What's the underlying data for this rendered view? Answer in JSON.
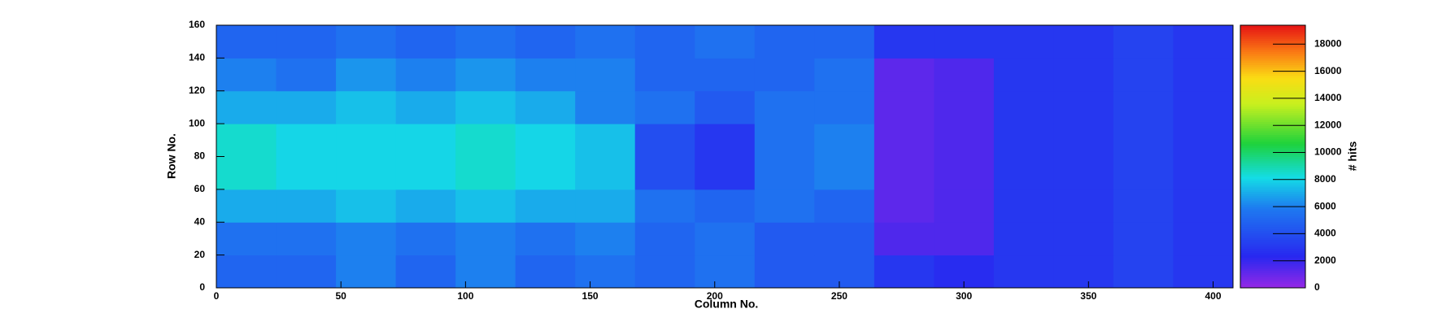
{
  "chart_data": {
    "type": "heatmap",
    "x_label": "Column No.",
    "y_label": "Row No.",
    "z_label": "# hits",
    "x_bins": [
      0,
      24,
      48,
      72,
      96,
      120,
      144,
      168,
      192,
      216,
      240,
      264,
      288,
      312,
      336,
      360,
      384,
      408
    ],
    "y_bins": [
      0,
      20,
      40,
      60,
      80,
      100,
      120,
      140,
      160
    ],
    "values": [
      [
        5000,
        5000,
        6000,
        5000,
        6000,
        5000,
        5500,
        5000,
        5500,
        4500,
        4500,
        3000,
        2500,
        3000,
        3000,
        3500,
        3000
      ],
      [
        5500,
        5500,
        6000,
        5500,
        6000,
        5500,
        6000,
        5000,
        5500,
        4500,
        4500,
        1500,
        1500,
        3000,
        3000,
        3500,
        3000
      ],
      [
        7000,
        7000,
        7500,
        7000,
        7500,
        7000,
        7000,
        5500,
        5000,
        5500,
        5000,
        1200,
        1500,
        3000,
        3000,
        3500,
        3000
      ],
      [
        8500,
        8000,
        8000,
        8000,
        8500,
        8000,
        7500,
        4000,
        3000,
        5500,
        6000,
        1200,
        1500,
        3000,
        3000,
        3500,
        3000
      ],
      [
        8500,
        8000,
        8000,
        8000,
        8500,
        8000,
        7500,
        4000,
        3000,
        5500,
        6000,
        1200,
        1500,
        3000,
        3000,
        3500,
        3000
      ],
      [
        7000,
        7000,
        7500,
        7000,
        7500,
        7000,
        6000,
        5500,
        4500,
        5500,
        5500,
        1200,
        1500,
        3000,
        3000,
        3500,
        3000
      ],
      [
        6000,
        5500,
        6500,
        6000,
        6500,
        6000,
        6000,
        5000,
        5000,
        5000,
        5500,
        1200,
        1500,
        3000,
        3000,
        3500,
        3000
      ],
      [
        5000,
        5000,
        5500,
        5000,
        5500,
        5000,
        5500,
        5000,
        5500,
        5000,
        5000,
        3000,
        3000,
        3000,
        3000,
        3500,
        3000
      ]
    ],
    "xlim": [
      0,
      408
    ],
    "xticks": [
      0,
      50,
      100,
      150,
      200,
      250,
      300,
      350,
      400
    ],
    "ylim": [
      0,
      160
    ],
    "yticks": [
      0,
      20,
      40,
      60,
      80,
      100,
      120,
      140,
      160
    ],
    "zlim": [
      0,
      19400
    ],
    "zticks": [
      0,
      2000,
      4000,
      6000,
      8000,
      10000,
      12000,
      14000,
      16000,
      18000
    ]
  }
}
